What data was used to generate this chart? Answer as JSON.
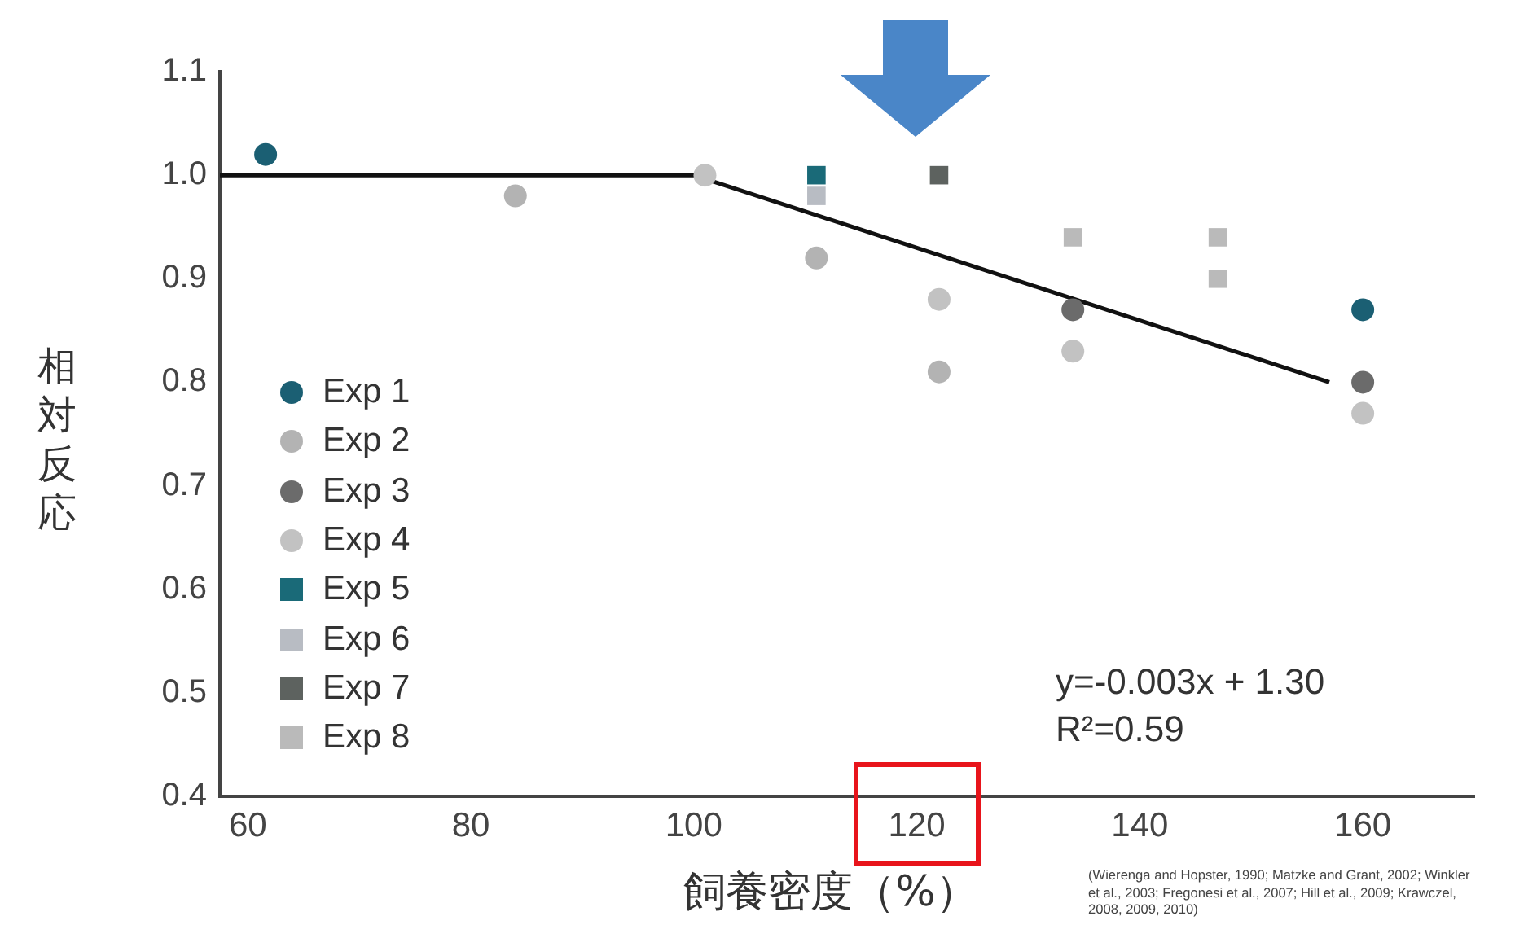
{
  "chart_data": {
    "type": "scatter",
    "xlabel": "飼養密度（%）",
    "ylabel": "相対反応",
    "xlim": [
      57.5,
      170
    ],
    "xticks": [
      60,
      80,
      100,
      120,
      140,
      160
    ],
    "ylim": [
      0.4,
      1.1
    ],
    "yticks": [
      {
        "value": 0.4,
        "label": "0.4"
      },
      {
        "value": 0.5,
        "label": "0.5"
      },
      {
        "value": 0.6,
        "label": "0.6"
      },
      {
        "value": 0.7,
        "label": "0.7"
      },
      {
        "value": 0.8,
        "label": "0.8"
      },
      {
        "value": 0.9,
        "label": "0.9"
      },
      {
        "value": 1.0,
        "label": "1.0"
      },
      {
        "value": 1.1,
        "label": "1.1"
      }
    ],
    "grid": false,
    "legend": "left",
    "series": [
      {
        "name": "Exp 1",
        "color": "#1b5f73",
        "marker": "circle",
        "x": [
          61.6,
          160
        ],
        "values": [
          1.02,
          0.87
        ]
      },
      {
        "name": "Exp 2",
        "color": "#b3b3b3",
        "marker": "circle",
        "x": [
          84,
          111,
          122
        ],
        "values": [
          0.98,
          0.92,
          0.81
        ]
      },
      {
        "name": "Exp 3",
        "color": "#6b6b6b",
        "marker": "circle",
        "x": [
          134,
          160
        ],
        "values": [
          0.87,
          0.8
        ]
      },
      {
        "name": "Exp 4",
        "color": "#c2c2c2",
        "marker": "circle",
        "x": [
          101,
          122,
          134,
          160
        ],
        "values": [
          1.0,
          0.88,
          0.83,
          0.77
        ]
      },
      {
        "name": "Exp 5",
        "color": "#1a6a78",
        "marker": "square",
        "x": [
          111
        ],
        "values": [
          1.0
        ]
      },
      {
        "name": "Exp 6",
        "color": "#b8bcc3",
        "marker": "square",
        "x": [
          111
        ],
        "values": [
          0.98
        ]
      },
      {
        "name": "Exp 7",
        "color": "#5d625f",
        "marker": "square",
        "x": [
          122
        ],
        "values": [
          1.0
        ]
      },
      {
        "name": "Exp 8",
        "color": "#bababa",
        "marker": "square",
        "x": [
          134,
          147,
          147
        ],
        "values": [
          0.94,
          0.94,
          0.9
        ]
      },
      {
        "type": "line",
        "color": "#111111",
        "marker": "none",
        "x": [
          57.5,
          100,
          157
        ],
        "values": [
          1.0,
          1.0,
          0.8
        ]
      }
    ],
    "annotations": [
      "y=-0.003x + 1.30",
      "R²=0.59",
      "(Wierenga and Hopster, 1990; Matzke and Grant, 2002; Winkler et al., 2003; Fregonesi et al., 2007; Hill et al., 2009; Krawczel, 2008, 2009, 2010)"
    ]
  }
}
